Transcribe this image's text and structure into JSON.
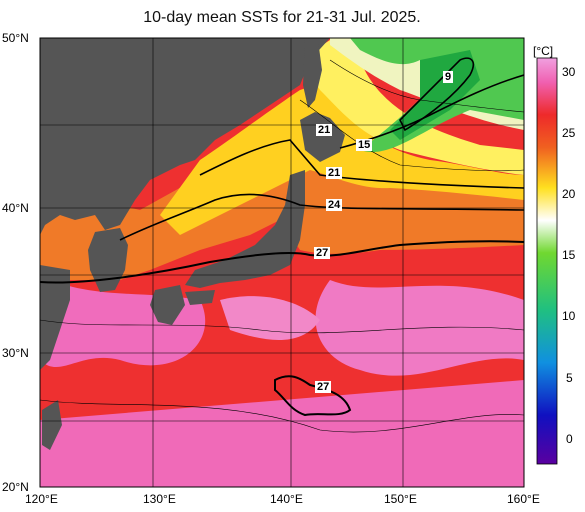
{
  "title": "10-day mean SSTs for 21-31 Jul. 2025.",
  "map": {
    "lat_labels": [
      "50°N",
      "40°N",
      "30°N",
      "20°N"
    ],
    "lon_labels": [
      "120°E",
      "130°E",
      "140°E",
      "150°E",
      "160°E"
    ],
    "contour_labels": [
      "9",
      "15",
      "21",
      "21",
      "24",
      "27",
      "27"
    ]
  },
  "colorbar": {
    "unit": "[°C]",
    "ticks": [
      "30",
      "25",
      "20",
      "15",
      "10",
      "5",
      "0"
    ],
    "range": [
      -2,
      32
    ]
  },
  "colors": {
    "land": "#555555",
    "warm": "#f0303a",
    "hot": "#f070c0",
    "mid": "#f5b020",
    "cool": "#40c040"
  }
}
